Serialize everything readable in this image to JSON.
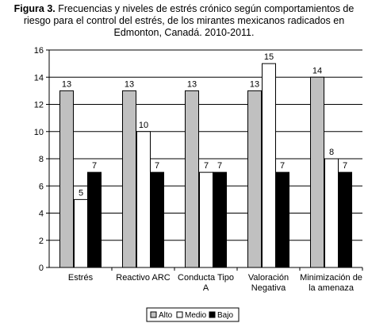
{
  "caption": {
    "label": "Figura 3.",
    "text": "Frecuencias y niveles de estrés crónico según comportamientos de riesgo para el control del estrés, de los mirantes mexicanos radicados en Edmonton, Canadá. 2010-2011."
  },
  "chart_data": {
    "type": "bar",
    "categories": [
      [
        "Estrés"
      ],
      [
        "Reactivo ARC"
      ],
      [
        "Conducta Tipo",
        "A"
      ],
      [
        "Valoración",
        "Negativa"
      ],
      [
        "Minimización de",
        "la amenaza"
      ]
    ],
    "series": [
      {
        "name": "Alto",
        "values": [
          13,
          13,
          13,
          13,
          14
        ],
        "color": "#c0c0c0"
      },
      {
        "name": "Medio",
        "values": [
          5,
          10,
          7,
          15,
          8
        ],
        "color": "#ffffff"
      },
      {
        "name": "Bajo",
        "values": [
          7,
          7,
          7,
          7,
          7
        ],
        "color": "#000000"
      }
    ],
    "ylim": [
      0,
      16
    ],
    "yticks": [
      0,
      2,
      4,
      6,
      8,
      10,
      12,
      14,
      16
    ],
    "grid": true,
    "legend_position": "bottom"
  }
}
